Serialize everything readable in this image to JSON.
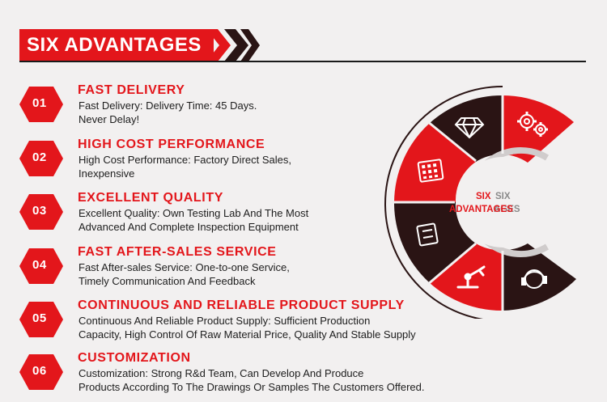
{
  "header": {
    "title": "SIX ADVANTAGES"
  },
  "advantages": [
    {
      "number": "01",
      "title": "FAST DELIVERY",
      "description": "Fast Delivery: Delivery Time: 45 Days.\nNever Delay!"
    },
    {
      "number": "02",
      "title": "HIGH COST PERFORMANCE",
      "description": "High Cost Performance: Factory Direct Sales,\nInexpensive"
    },
    {
      "number": "03",
      "title": "EXCELLENT QUALITY",
      "description": "Excellent Quality: Own Testing Lab And The Most\nAdvanced And Complete Inspection Equipment"
    },
    {
      "number": "04",
      "title": "FAST AFTER-SALES SERVICE",
      "description": "Fast After-sales Service: One-to-one Service,\nTimely Communication And Feedback"
    },
    {
      "number": "05",
      "title": "CONTINUOUS AND RELIABLE PRODUCT SUPPLY",
      "description": "Continuous And Reliable Product Supply: Sufficient Production\nCapacity, High Control Of Raw Material Price, Quality And Stable Supply"
    },
    {
      "number": "06",
      "title": "CUSTOMIZATION",
      "description": "Customization: Strong R&d Team, Can Develop And Produce\n Products According To The Drawings Or Samples The Customers Offered."
    }
  ],
  "wheel": {
    "center_red_line1": "SIX",
    "center_red_line2": "ADVANTAGES",
    "center_gray_line1": "SIX",
    "center_gray_line2": "AGES",
    "segments": [
      {
        "icon": "gears-icon",
        "color": "#e3161b"
      },
      {
        "icon": "diamond-icon",
        "color": "#2a1414"
      },
      {
        "icon": "calculator-icon",
        "color": "#e3161b"
      },
      {
        "icon": "box-icon",
        "color": "#2a1414"
      },
      {
        "icon": "robot-arm-icon",
        "color": "#e3161b"
      },
      {
        "icon": "headset-icon",
        "color": "#2a1414"
      }
    ]
  },
  "colors": {
    "accent": "#e3161b",
    "dark": "#2a1414",
    "background": "#f2f0f0"
  }
}
